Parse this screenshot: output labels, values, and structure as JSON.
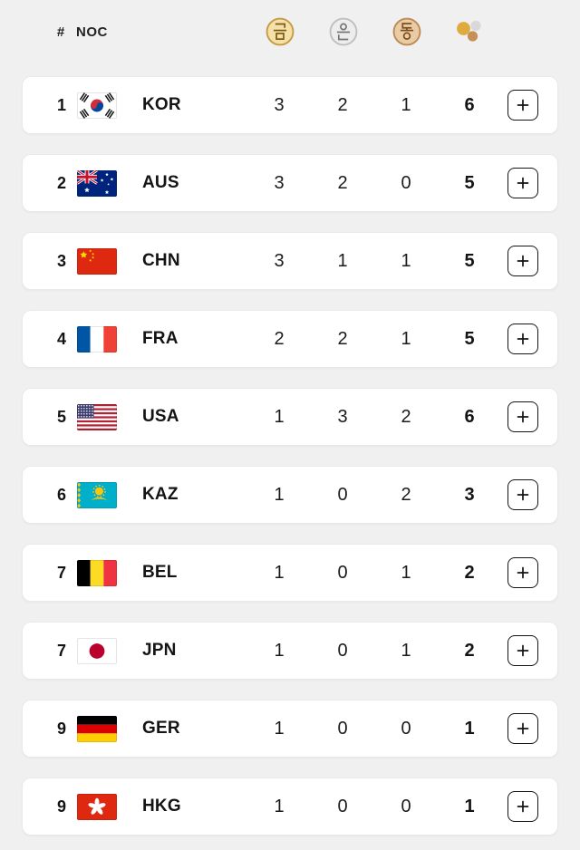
{
  "header": {
    "rank_label": "#",
    "noc_label": "NOC",
    "gold_label": "금",
    "silver_label": "은",
    "bronze_label": "동",
    "total_label": "total-medals"
  },
  "colors": {
    "gold": "#C59B43",
    "silver": "#BFBFBF",
    "bronze": "#BD8B54",
    "card_background": "#FFFFFF",
    "page_background": "#F0F0F1"
  },
  "row_action": {
    "expand_label": "+"
  },
  "rows": [
    {
      "rank": "1",
      "flag": "kor",
      "noc": "KOR",
      "gold": "3",
      "silver": "2",
      "bronze": "1",
      "total": "6"
    },
    {
      "rank": "2",
      "flag": "aus",
      "noc": "AUS",
      "gold": "3",
      "silver": "2",
      "bronze": "0",
      "total": "5"
    },
    {
      "rank": "3",
      "flag": "chn",
      "noc": "CHN",
      "gold": "3",
      "silver": "1",
      "bronze": "1",
      "total": "5"
    },
    {
      "rank": "4",
      "flag": "fra",
      "noc": "FRA",
      "gold": "2",
      "silver": "2",
      "bronze": "1",
      "total": "5"
    },
    {
      "rank": "5",
      "flag": "usa",
      "noc": "USA",
      "gold": "1",
      "silver": "3",
      "bronze": "2",
      "total": "6"
    },
    {
      "rank": "6",
      "flag": "kaz",
      "noc": "KAZ",
      "gold": "1",
      "silver": "0",
      "bronze": "2",
      "total": "3"
    },
    {
      "rank": "7",
      "flag": "bel",
      "noc": "BEL",
      "gold": "1",
      "silver": "0",
      "bronze": "1",
      "total": "2"
    },
    {
      "rank": "7",
      "flag": "jpn",
      "noc": "JPN",
      "gold": "1",
      "silver": "0",
      "bronze": "1",
      "total": "2"
    },
    {
      "rank": "9",
      "flag": "ger",
      "noc": "GER",
      "gold": "1",
      "silver": "0",
      "bronze": "0",
      "total": "1"
    },
    {
      "rank": "9",
      "flag": "hkg",
      "noc": "HKG",
      "gold": "1",
      "silver": "0",
      "bronze": "0",
      "total": "1"
    }
  ]
}
